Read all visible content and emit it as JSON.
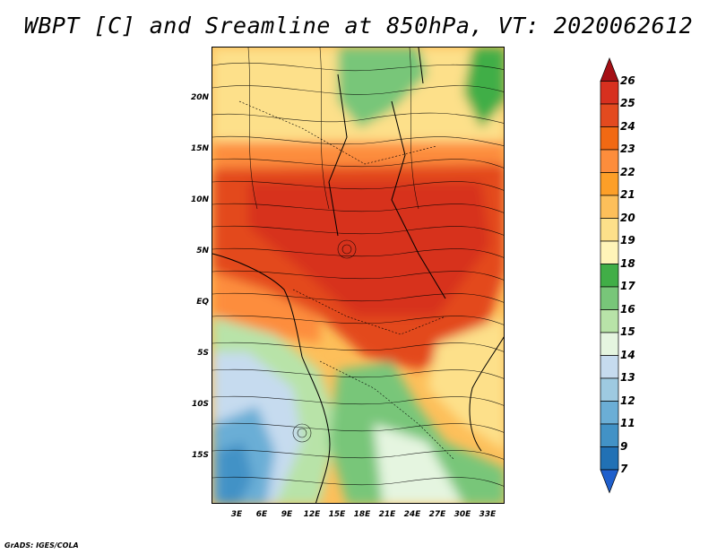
{
  "title": "WBPT [C] and Sreamline at 850hPa, VT: 2020062612",
  "credit": "GrADS: IGES/COLA",
  "lat_labels": [
    "20N",
    "15N",
    "10N",
    "5N",
    "EQ",
    "5S",
    "10S",
    "15S"
  ],
  "lon_labels": [
    "3E",
    "6E",
    "9E",
    "12E",
    "15E",
    "18E",
    "21E",
    "24E",
    "27E",
    "30E",
    "33E"
  ],
  "colorbar": {
    "labels": [
      "26",
      "25",
      "24",
      "23",
      "22",
      "21",
      "20",
      "19",
      "18",
      "17",
      "16",
      "15",
      "14",
      "13",
      "12",
      "11",
      "9",
      "7"
    ],
    "colors": [
      "#a50f15",
      "#d7301f",
      "#e34a1f",
      "#f16913",
      "#fd8d3c",
      "#fd9f28",
      "#fdbf5a",
      "#fde08a",
      "#fff4b8",
      "#41ae47",
      "#78c679",
      "#b8e3a8",
      "#e5f5e0",
      "#c6dbef",
      "#9ecae1",
      "#6baed6",
      "#4292c6",
      "#2171b5",
      "#1f5fcc"
    ]
  }
}
